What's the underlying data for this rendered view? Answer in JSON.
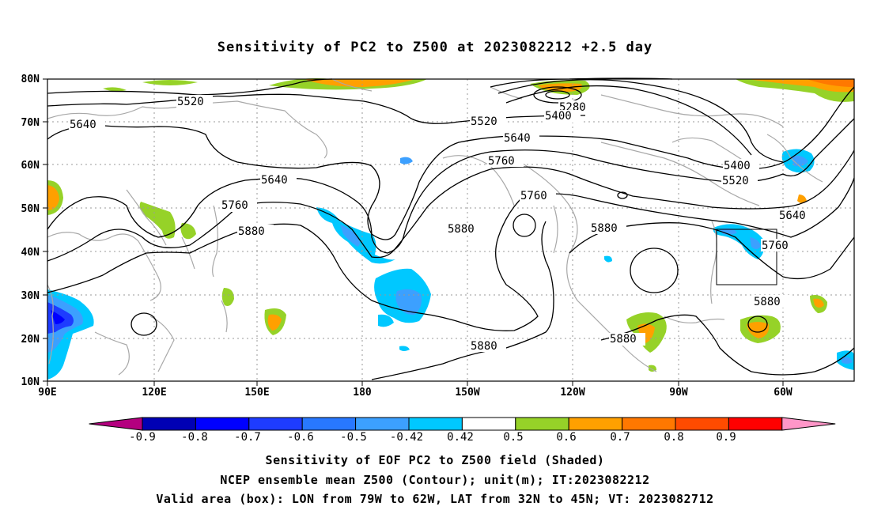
{
  "title": "Sensitivity of PC2 to Z500 at 2023082212 +2.5 day",
  "lat_labels": [
    "80N",
    "70N",
    "60N",
    "50N",
    "40N",
    "30N",
    "20N",
    "10N"
  ],
  "lon_labels": [
    "90E",
    "120E",
    "150E",
    "180",
    "150W",
    "120W",
    "90W",
    "60W"
  ],
  "contour_labels": [
    "5520",
    "5640",
    "5280",
    "5400",
    "5520",
    "5640",
    "5760",
    "5760",
    "5400",
    "5520",
    "5640",
    "5880",
    "5880",
    "5880",
    "5760",
    "5880",
    "5880",
    "5880",
    "5640",
    "5760"
  ],
  "colorbar": {
    "tick_labels": [
      "-0.9",
      "-0.8",
      "-0.7",
      "-0.6",
      "-0.5",
      "-0.42",
      "0.42",
      "0.5",
      "0.6",
      "0.7",
      "0.8",
      "0.9"
    ],
    "colors": [
      "#b4007f",
      "#0000b4",
      "#0000ff",
      "#1e3cff",
      "#2878ff",
      "#3ca0ff",
      "#00c8ff",
      "#ffffff",
      "#96d228",
      "#ffa000",
      "#ff7800",
      "#ff4b00",
      "#ff0000",
      "#ff96c8"
    ]
  },
  "captions": {
    "line1": "Sensitivity of EOF PC2 to Z500 field (Shaded)",
    "line2": "NCEP ensemble mean Z500 (Contour); unit(m); IT:2023082212",
    "line3": "Valid area (box): LON from 79W to 62W, LAT from 32N to 45N; VT: 2023082712"
  }
}
